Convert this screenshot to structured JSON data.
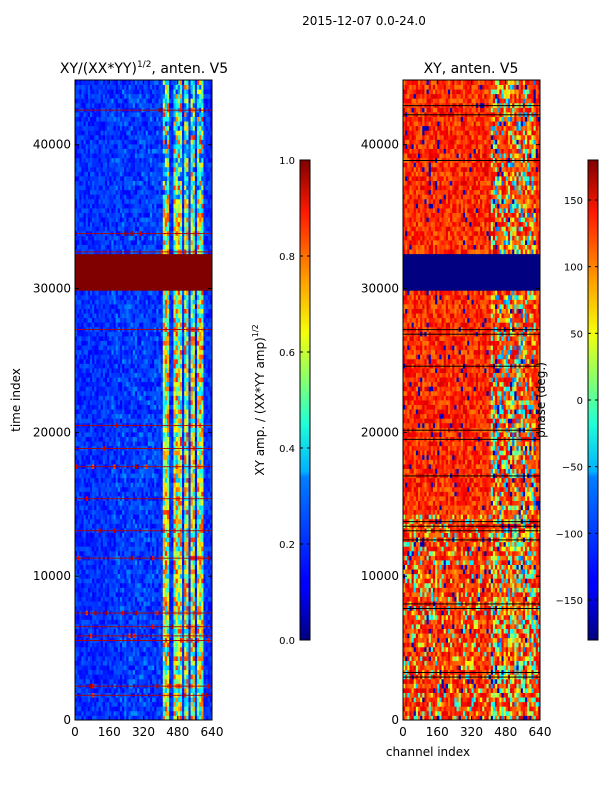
{
  "figure": {
    "suptitle": "2015-12-07 0.0-24.0"
  },
  "chart_data": [
    {
      "type": "heatmap",
      "title_base": "XY/(XX*YY)",
      "title_exp": "1/2",
      "title_tail": ", anten. V5",
      "xlabel": "",
      "ylabel": "time index",
      "xlim": [
        0,
        640
      ],
      "ylim": [
        0,
        44500
      ],
      "xticks": [
        0,
        160,
        320,
        480,
        640
      ],
      "yticks": [
        0,
        10000,
        20000,
        30000,
        40000
      ],
      "colormap": "jet",
      "colorbar": {
        "label_base": "XY amp. / (XX*YY amp)",
        "label_exp": "1/2",
        "range": [
          0.0,
          1.0
        ],
        "ticks": [
          "0.0",
          "0.2",
          "0.4",
          "0.6",
          "0.8",
          "1.0"
        ]
      },
      "saturated_band": {
        "time_range": [
          29800,
          32300
        ],
        "value": 1.0
      },
      "high_channel_bands": [
        [
          410,
          440
        ],
        [
          460,
          500
        ],
        [
          505,
          530
        ],
        [
          540,
          560
        ],
        [
          570,
          600
        ]
      ],
      "background_level": 0.12
    },
    {
      "type": "heatmap",
      "title": "XY, anten. V5",
      "xlabel": "channel index",
      "ylabel": "",
      "xlim": [
        0,
        640
      ],
      "ylim": [
        0,
        44500
      ],
      "xticks": [
        0,
        160,
        320,
        480,
        640
      ],
      "yticks": [
        0,
        10000,
        20000,
        30000,
        40000
      ],
      "colormap": "jet",
      "colorbar": {
        "label": "phase (deg.)",
        "range": [
          -180,
          180
        ],
        "ticks": [
          "150",
          "100",
          "50",
          "0",
          "−50",
          "−100",
          "−150"
        ]
      },
      "flagged_band": {
        "time_range": [
          29800,
          32300
        ],
        "value": -180
      },
      "typical_phase": 120
    }
  ],
  "colors": {
    "low": "#00008f",
    "high": "#800000",
    "axis": "#000000"
  }
}
